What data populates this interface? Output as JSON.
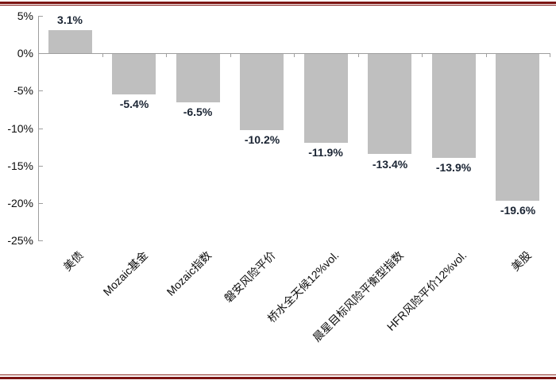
{
  "page": {
    "background_color": "#ffffff",
    "rule_color": "#7b1412"
  },
  "chart_data": {
    "type": "bar",
    "categories": [
      "美债",
      "Mozaic基金",
      "Mozaic指数",
      "磐安风险平价",
      "桥水全天候12%vol.",
      "晨星目标风险平衡型指数",
      "HFR风险平价12%vol.",
      "美股"
    ],
    "values": [
      3.1,
      -5.4,
      -6.5,
      -10.2,
      -11.9,
      -13.4,
      -13.9,
      -19.6
    ],
    "data_labels": [
      "3.1%",
      "-5.4%",
      "-6.5%",
      "-10.2%",
      "-11.9%",
      "-13.4%",
      "-13.9%",
      "-19.6%"
    ],
    "title": "",
    "xlabel": "",
    "ylabel": "",
    "ylim": [
      -25,
      5
    ],
    "ytick_step": 5,
    "yticks": [
      5,
      0,
      -5,
      -10,
      -15,
      -20,
      -25
    ],
    "ytick_labels": [
      "5%",
      "0%",
      "-5%",
      "-10%",
      "-15%",
      "-20%",
      "-25%"
    ],
    "grid": false,
    "legend": null,
    "bar_color": "#bfbfbf",
    "axis_color": "#9e9e9e",
    "data_label_color": "#1a2433",
    "x_label_rotation_deg": 45
  }
}
